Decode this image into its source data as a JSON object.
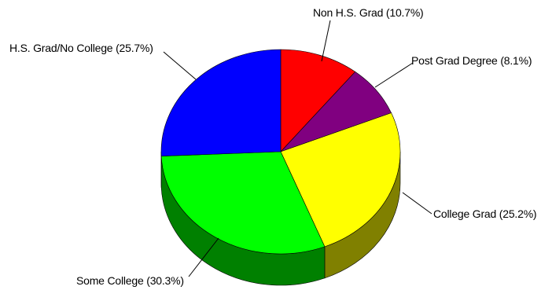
{
  "chart_data": {
    "type": "pie",
    "three_d": true,
    "legend": "none",
    "slices": [
      {
        "label": "Non H.S. Grad (10.7%)",
        "value": 10.7,
        "color": "#ff0000",
        "side_color": "#800000"
      },
      {
        "label": "Post Grad Degree (8.1%)",
        "value": 8.1,
        "color": "#800080",
        "side_color": "#400040"
      },
      {
        "label": "College Grad (25.2%)",
        "value": 25.2,
        "color": "#ffff00",
        "side_color": "#808000"
      },
      {
        "label": "Some College (30.3%)",
        "value": 30.3,
        "color": "#00ff00",
        "side_color": "#008000"
      },
      {
        "label": "H.S. Grad/No College (25.7%)",
        "value": 25.7,
        "color": "#0000ff",
        "side_color": "#000080"
      }
    ]
  }
}
